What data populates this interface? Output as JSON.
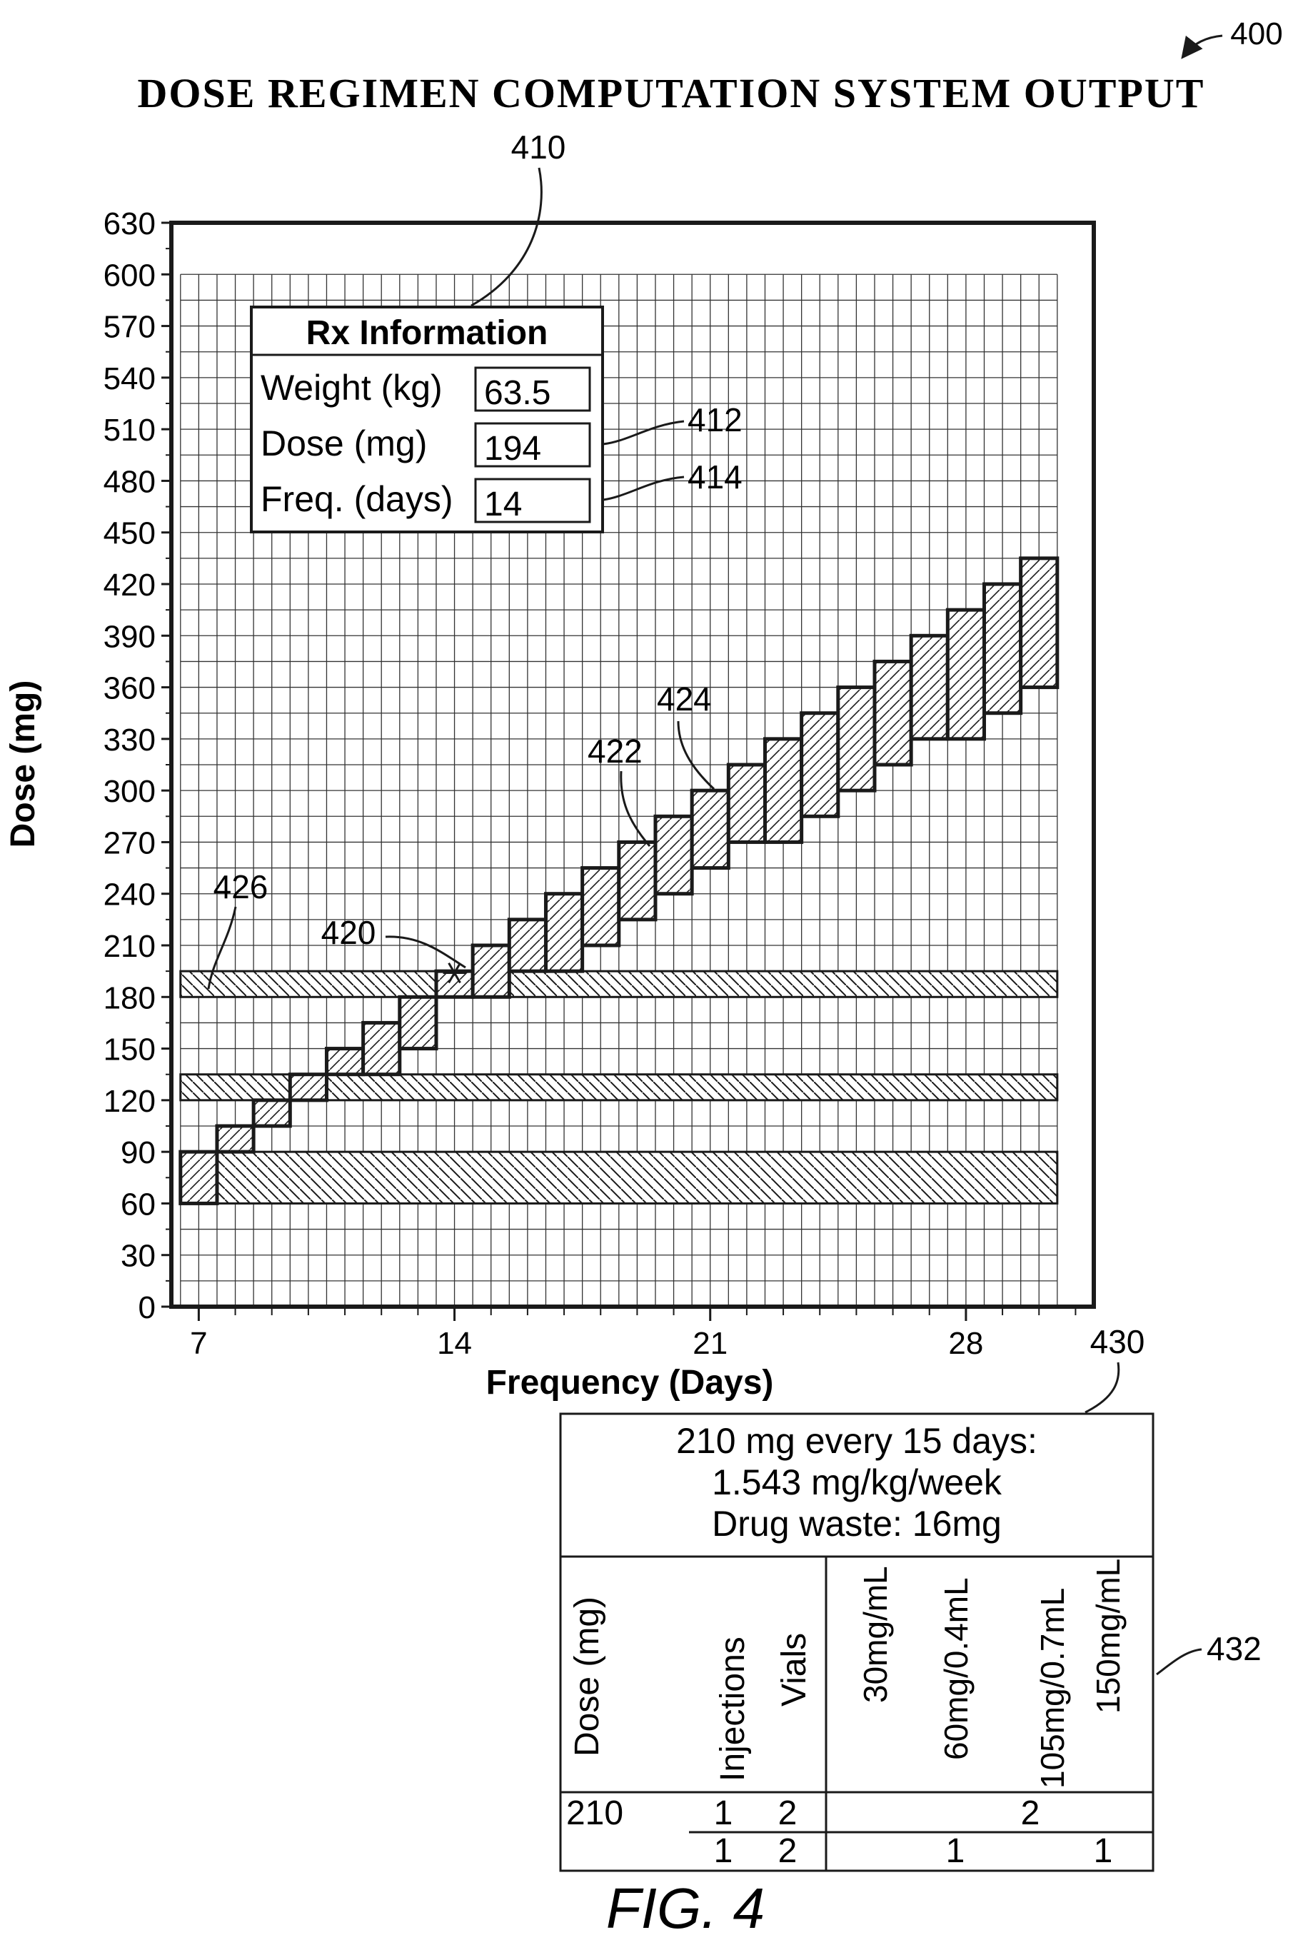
{
  "figure": {
    "title": "DOSE REGIMEN COMPUTATION SYSTEM OUTPUT",
    "ref_figure": "400",
    "ref_panel": "410",
    "ref_dose_field": "412",
    "ref_freq_field": "414",
    "ref_point": "420",
    "ref_band_a": "422",
    "ref_band_b": "424",
    "ref_hbands": "426",
    "ref_summary_table": "430",
    "ref_vial_table": "432",
    "caption": "FIG. 4"
  },
  "rx_panel": {
    "title": "Rx Information",
    "fields": [
      {
        "label": "Weight (kg)",
        "value": "63.5"
      },
      {
        "label": "Dose (mg)",
        "value": "194"
      },
      {
        "label": "Freq. (days)",
        "value": "14"
      }
    ]
  },
  "summary_table": {
    "lines": [
      "210 mg every 15 days:",
      "1.543 mg/kg/week",
      "Drug waste: 16mg"
    ],
    "headers": [
      "Dose (mg)",
      "Injections",
      "Vials",
      "30mg/mL",
      "60mg/0.4mL",
      "105mg/0.7mL",
      "150mg/mL"
    ],
    "rows": [
      {
        "dose": "210",
        "injections": "1",
        "vials": "2",
        "cells": [
          "",
          "",
          "2",
          ""
        ]
      },
      {
        "dose": "",
        "injections": "1",
        "vials": "2",
        "cells": [
          "",
          "1",
          "",
          "1"
        ]
      }
    ]
  },
  "chart_data": {
    "type": "heatmap",
    "title": "DOSE REGIMEN COMPUTATION SYSTEM OUTPUT",
    "xlabel": "Frequency (Days)",
    "ylabel": "Dose (mg)",
    "xlim": [
      6.25,
      31.5
    ],
    "ylim": [
      0,
      630
    ],
    "x_ticks": [
      7,
      14,
      21,
      28
    ],
    "y_ticks": [
      0,
      30,
      60,
      90,
      120,
      150,
      180,
      210,
      240,
      270,
      300,
      330,
      360,
      390,
      420,
      450,
      480,
      510,
      540,
      570,
      600,
      630
    ],
    "grid": true,
    "grid_x_range": [
      6.5,
      30.5
    ],
    "grid_y_range": [
      0,
      600
    ],
    "grid_x_step": 0.5,
    "grid_y_step": 15,
    "horizontal_bands": [
      {
        "y_from": 60,
        "y_to": 90
      },
      {
        "y_from": 120,
        "y_to": 135
      },
      {
        "y_from": 180,
        "y_to": 195
      }
    ],
    "regimen_cells": [
      {
        "x0": 6.5,
        "x1": 7.5,
        "y0": 60,
        "y1": 90
      },
      {
        "x0": 7.5,
        "x1": 8.5,
        "y0": 90,
        "y1": 105
      },
      {
        "x0": 8.5,
        "x1": 9.5,
        "y0": 105,
        "y1": 120
      },
      {
        "x0": 9.5,
        "x1": 10.5,
        "y0": 120,
        "y1": 135
      },
      {
        "x0": 10.5,
        "x1": 11.5,
        "y0": 135,
        "y1": 150
      },
      {
        "x0": 11.5,
        "x1": 12.5,
        "y0": 135,
        "y1": 165
      },
      {
        "x0": 12.5,
        "x1": 13.5,
        "y0": 150,
        "y1": 180
      },
      {
        "x0": 13.5,
        "x1": 14.5,
        "y0": 180,
        "y1": 195
      },
      {
        "x0": 14.5,
        "x1": 15.5,
        "y0": 180,
        "y1": 210
      },
      {
        "x0": 15.5,
        "x1": 16.5,
        "y0": 195,
        "y1": 225
      },
      {
        "x0": 16.5,
        "x1": 17.5,
        "y0": 195,
        "y1": 240
      },
      {
        "x0": 17.5,
        "x1": 18.5,
        "y0": 210,
        "y1": 255
      },
      {
        "x0": 18.5,
        "x1": 19.5,
        "y0": 225,
        "y1": 270
      },
      {
        "x0": 19.5,
        "x1": 20.5,
        "y0": 240,
        "y1": 285
      },
      {
        "x0": 20.5,
        "x1": 21.5,
        "y0": 255,
        "y1": 300
      },
      {
        "x0": 21.5,
        "x1": 22.5,
        "y0": 270,
        "y1": 315
      },
      {
        "x0": 22.5,
        "x1": 23.5,
        "y0": 270,
        "y1": 330
      },
      {
        "x0": 23.5,
        "x1": 24.5,
        "y0": 285,
        "y1": 345
      },
      {
        "x0": 24.5,
        "x1": 25.5,
        "y0": 300,
        "y1": 360
      },
      {
        "x0": 25.5,
        "x1": 26.5,
        "y0": 315,
        "y1": 375
      },
      {
        "x0": 26.5,
        "x1": 27.5,
        "y0": 330,
        "y1": 390
      },
      {
        "x0": 27.5,
        "x1": 28.5,
        "y0": 330,
        "y1": 405
      },
      {
        "x0": 28.5,
        "x1": 29.5,
        "y0": 345,
        "y1": 420
      },
      {
        "x0": 29.5,
        "x1": 30.5,
        "y0": 360,
        "y1": 435
      }
    ],
    "selected_point": {
      "x": 14,
      "y": 194
    }
  }
}
